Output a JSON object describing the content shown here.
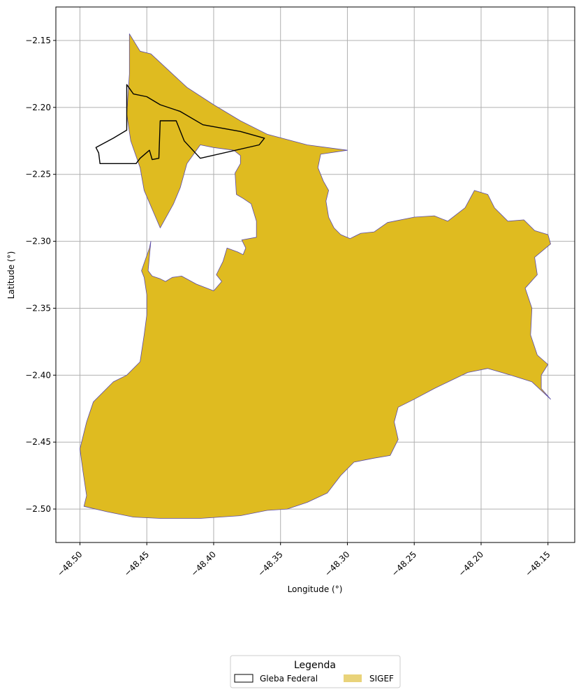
{
  "chart_data": {
    "type": "map",
    "xlabel": "Longitude (°)",
    "ylabel": "Latitude (°)",
    "xlim": [
      -48.518,
      -48.13
    ],
    "ylim": [
      -2.525,
      -2.125
    ],
    "xticks": [
      -48.5,
      -48.45,
      -48.4,
      -48.35,
      -48.3,
      -48.25,
      -48.2,
      -48.15
    ],
    "xtick_labels": [
      "−48.50",
      "−48.45",
      "−48.40",
      "−48.35",
      "−48.30",
      "−48.25",
      "−48.20",
      "−48.15"
    ],
    "yticks": [
      -2.15,
      -2.2,
      -2.25,
      -2.3,
      -2.35,
      -2.4,
      -2.45,
      -2.5
    ],
    "ytick_labels": [
      "−2.15",
      "−2.20",
      "−2.25",
      "−2.30",
      "−2.35",
      "−2.40",
      "−2.45",
      "−2.50"
    ],
    "grid": true,
    "layers": {
      "sigef": {
        "label": "SIGEF",
        "fill_color": "#dfbb20",
        "legend_color": "#e9d37a",
        "edge_color": "#5a4aa8"
      },
      "gleba": {
        "label": "Gleba Federal",
        "fill_color": "none",
        "edge_color": "#000000"
      }
    },
    "legend": {
      "title": "Legenda",
      "placement": "bottom-center",
      "entries": [
        "Gleba Federal",
        "SIGEF"
      ]
    },
    "sigef_polygons": [
      [
        [
          -48.463,
          -2.145
        ],
        [
          -48.455,
          -2.158
        ],
        [
          -48.447,
          -2.16
        ],
        [
          -48.42,
          -2.185
        ],
        [
          -48.4,
          -2.198
        ],
        [
          -48.38,
          -2.21
        ],
        [
          -48.36,
          -2.22
        ],
        [
          -48.33,
          -2.228
        ],
        [
          -48.3,
          -2.232
        ],
        [
          -48.32,
          -2.235
        ],
        [
          -48.322,
          -2.245
        ],
        [
          -48.318,
          -2.255
        ],
        [
          -48.314,
          -2.262
        ],
        [
          -48.316,
          -2.27
        ],
        [
          -48.314,
          -2.282
        ],
        [
          -48.31,
          -2.29
        ],
        [
          -48.305,
          -2.295
        ],
        [
          -48.298,
          -2.298
        ],
        [
          -48.29,
          -2.294
        ],
        [
          -48.28,
          -2.293
        ],
        [
          -48.27,
          -2.286
        ],
        [
          -48.25,
          -2.282
        ],
        [
          -48.235,
          -2.281
        ],
        [
          -48.225,
          -2.285
        ],
        [
          -48.212,
          -2.275
        ],
        [
          -48.205,
          -2.262
        ],
        [
          -48.195,
          -2.265
        ],
        [
          -48.19,
          -2.275
        ],
        [
          -48.18,
          -2.285
        ],
        [
          -48.168,
          -2.284
        ],
        [
          -48.16,
          -2.292
        ],
        [
          -48.15,
          -2.295
        ],
        [
          -48.148,
          -2.302
        ],
        [
          -48.16,
          -2.312
        ],
        [
          -48.158,
          -2.325
        ],
        [
          -48.167,
          -2.335
        ],
        [
          -48.162,
          -2.35
        ],
        [
          -48.163,
          -2.37
        ],
        [
          -48.158,
          -2.385
        ],
        [
          -48.15,
          -2.392
        ],
        [
          -48.155,
          -2.4
        ],
        [
          -48.155,
          -2.41
        ],
        [
          -48.148,
          -2.418
        ],
        [
          -48.162,
          -2.405
        ],
        [
          -48.178,
          -2.4
        ],
        [
          -48.195,
          -2.395
        ],
        [
          -48.21,
          -2.398
        ],
        [
          -48.235,
          -2.41
        ],
        [
          -48.25,
          -2.418
        ],
        [
          -48.262,
          -2.424
        ],
        [
          -48.265,
          -2.435
        ],
        [
          -48.262,
          -2.448
        ],
        [
          -48.268,
          -2.46
        ],
        [
          -48.28,
          -2.462
        ],
        [
          -48.295,
          -2.465
        ],
        [
          -48.305,
          -2.475
        ],
        [
          -48.315,
          -2.488
        ],
        [
          -48.33,
          -2.495
        ],
        [
          -48.345,
          -2.5
        ],
        [
          -48.36,
          -2.501
        ],
        [
          -48.38,
          -2.505
        ],
        [
          -48.41,
          -2.507
        ],
        [
          -48.44,
          -2.507
        ],
        [
          -48.46,
          -2.506
        ],
        [
          -48.48,
          -2.502
        ],
        [
          -48.497,
          -2.498
        ],
        [
          -48.495,
          -2.49
        ],
        [
          -48.498,
          -2.47
        ],
        [
          -48.5,
          -2.455
        ],
        [
          -48.495,
          -2.435
        ],
        [
          -48.49,
          -2.42
        ],
        [
          -48.475,
          -2.405
        ],
        [
          -48.465,
          -2.4
        ],
        [
          -48.455,
          -2.39
        ],
        [
          -48.452,
          -2.37
        ],
        [
          -48.45,
          -2.355
        ],
        [
          -48.45,
          -2.34
        ],
        [
          -48.452,
          -2.327
        ],
        [
          -48.454,
          -2.322
        ],
        [
          -48.448,
          -2.305
        ],
        [
          -48.447,
          -2.3
        ],
        [
          -48.449,
          -2.322
        ],
        [
          -48.446,
          -2.326
        ],
        [
          -48.44,
          -2.328
        ],
        [
          -48.436,
          -2.33
        ],
        [
          -48.431,
          -2.327
        ],
        [
          -48.424,
          -2.326
        ],
        [
          -48.413,
          -2.332
        ],
        [
          -48.4,
          -2.337
        ],
        [
          -48.394,
          -2.33
        ],
        [
          -48.398,
          -2.325
        ],
        [
          -48.393,
          -2.315
        ],
        [
          -48.39,
          -2.305
        ],
        [
          -48.382,
          -2.308
        ],
        [
          -48.378,
          -2.31
        ],
        [
          -48.376,
          -2.305
        ],
        [
          -48.379,
          -2.299
        ],
        [
          -48.368,
          -2.297
        ],
        [
          -48.368,
          -2.285
        ],
        [
          -48.372,
          -2.272
        ],
        [
          -48.378,
          -2.268
        ],
        [
          -48.383,
          -2.265
        ],
        [
          -48.384,
          -2.249
        ],
        [
          -48.38,
          -2.242
        ],
        [
          -48.38,
          -2.236
        ],
        [
          -48.385,
          -2.232
        ],
        [
          -48.4,
          -2.23
        ],
        [
          -48.41,
          -2.228
        ],
        [
          -48.42,
          -2.242
        ],
        [
          -48.425,
          -2.26
        ],
        [
          -48.43,
          -2.272
        ],
        [
          -48.44,
          -2.29
        ],
        [
          -48.452,
          -2.262
        ],
        [
          -48.455,
          -2.245
        ],
        [
          -48.462,
          -2.225
        ],
        [
          -48.465,
          -2.205
        ],
        [
          -48.463,
          -2.175
        ]
      ]
    ],
    "gleba_polygons": [
      [
        [
          -48.465,
          -2.183
        ],
        [
          -48.46,
          -2.19
        ],
        [
          -48.45,
          -2.192
        ],
        [
          -48.44,
          -2.198
        ],
        [
          -48.425,
          -2.203
        ],
        [
          -48.408,
          -2.213
        ],
        [
          -48.38,
          -2.218
        ],
        [
          -48.362,
          -2.223
        ],
        [
          -48.366,
          -2.228
        ],
        [
          -48.41,
          -2.238
        ],
        [
          -48.422,
          -2.225
        ],
        [
          -48.428,
          -2.21
        ],
        [
          -48.44,
          -2.21
        ],
        [
          -48.441,
          -2.238
        ],
        [
          -48.446,
          -2.239
        ],
        [
          -48.448,
          -2.232
        ],
        [
          -48.455,
          -2.238
        ],
        [
          -48.458,
          -2.242
        ],
        [
          -48.465,
          -2.242
        ],
        [
          -48.485,
          -2.242
        ],
        [
          -48.486,
          -2.234
        ],
        [
          -48.488,
          -2.23
        ],
        [
          -48.475,
          -2.223
        ],
        [
          -48.465,
          -2.217
        ]
      ]
    ]
  }
}
